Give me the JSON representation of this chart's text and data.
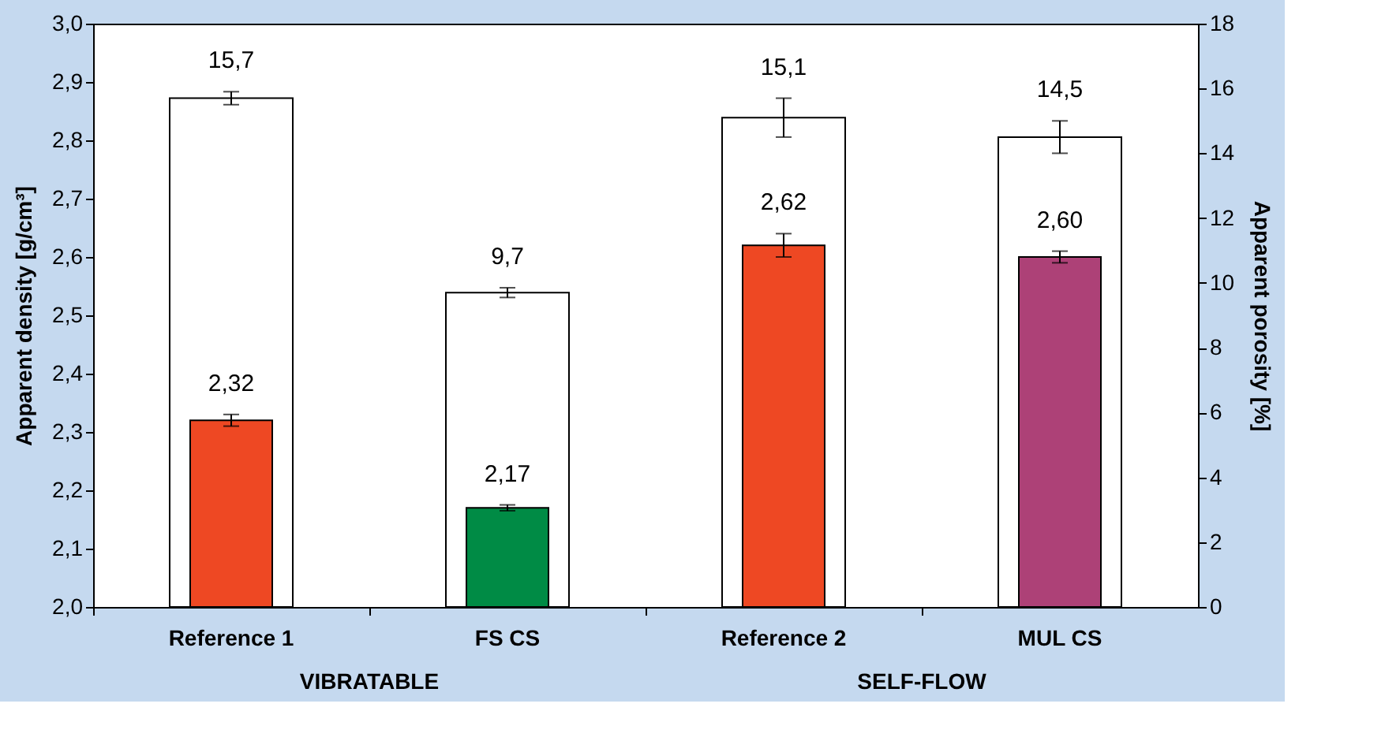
{
  "chart_data": {
    "type": "bar",
    "categories": [
      "Reference 1",
      "FS CS",
      "Reference 2",
      "MUL CS"
    ],
    "ylabel": "Apparent density [g/cm³]",
    "y2label": "Apparent porosity [%]",
    "ylim": [
      2.0,
      3.0
    ],
    "yticks": [
      {
        "value": 2.0,
        "label": "2,0"
      },
      {
        "value": 2.1,
        "label": "2,1"
      },
      {
        "value": 2.2,
        "label": "2,2"
      },
      {
        "value": 2.3,
        "label": "2,3"
      },
      {
        "value": 2.4,
        "label": "2,4"
      },
      {
        "value": 2.5,
        "label": "2,5"
      },
      {
        "value": 2.6,
        "label": "2,6"
      },
      {
        "value": 2.7,
        "label": "2,7"
      },
      {
        "value": 2.8,
        "label": "2,8"
      },
      {
        "value": 2.9,
        "label": "2,9"
      },
      {
        "value": 3.0,
        "label": "3,0"
      }
    ],
    "y2lim": [
      0,
      18
    ],
    "y2ticks": [
      0,
      2,
      4,
      6,
      8,
      10,
      12,
      14,
      16,
      18
    ],
    "grid": false,
    "series": [
      {
        "axis": "y2",
        "color": "#ffffff",
        "values": [
          15.7,
          9.7,
          15.1,
          14.5
        ],
        "errors": [
          0.2,
          0.15,
          0.6,
          0.5
        ],
        "value_labels": [
          "15,7",
          "9,7",
          "15,1",
          "14,5"
        ]
      },
      {
        "colors": [
          "#ee4823",
          "#008b45",
          "#ee4823",
          "#ad4177"
        ],
        "values": [
          2.32,
          2.17,
          2.62,
          2.6
        ],
        "errors": [
          0.01,
          0.005,
          0.02,
          0.01
        ],
        "value_labels": [
          "2,32",
          "2,17",
          "2,62",
          "2,60"
        ]
      }
    ],
    "annotations": [
      "VIBRATABLE",
      "SELF-FLOW"
    ]
  }
}
